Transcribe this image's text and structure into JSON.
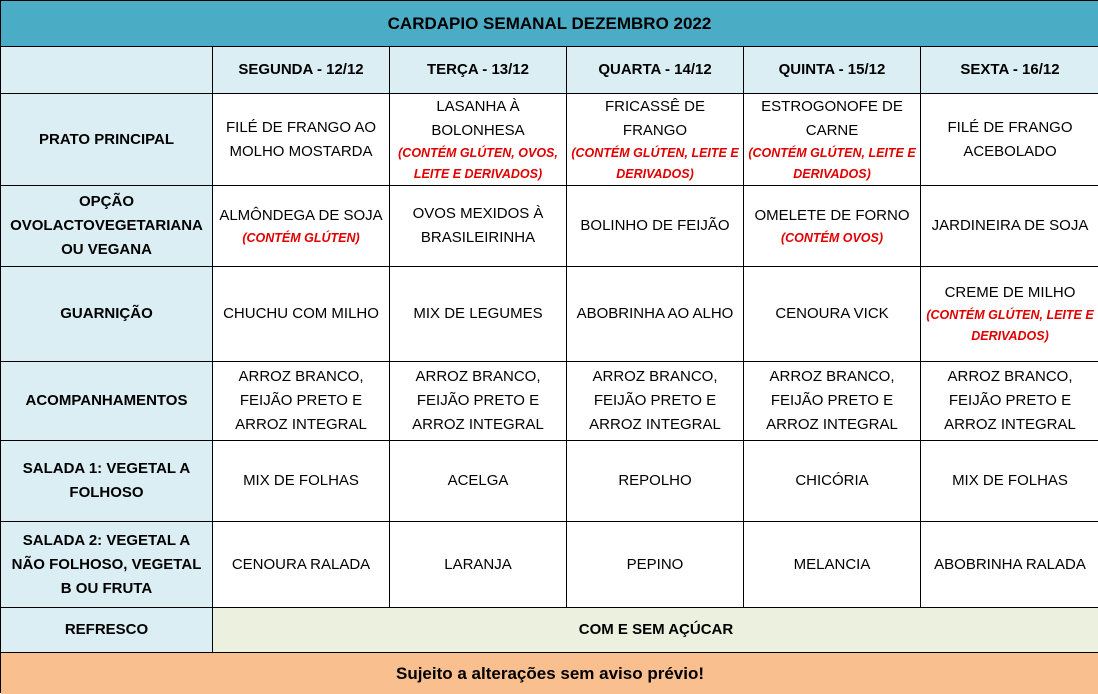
{
  "title": "CARDAPIO SEMANAL DEZEMBRO 2022",
  "days": [
    "SEGUNDA - 12/12",
    "TERÇA - 13/12",
    "QUARTA - 14/12",
    "QUINTA - 15/12",
    "SEXTA - 16/12"
  ],
  "rows": [
    {
      "label": "PRATO PRINCIPAL",
      "cells": [
        {
          "text": "FILÉ DE FRANGO AO MOLHO MOSTARDA"
        },
        {
          "text": "LASANHA À BOLONHESA",
          "note": "(CONTÉM GLÚTEN, OVOS, LEITE E DERIVADOS)"
        },
        {
          "text": "FRICASSÊ DE FRANGO",
          "note": "(CONTÉM GLÚTEN, LEITE E DERIVADOS)"
        },
        {
          "text": "ESTROGONOFE DE CARNE",
          "note": "(CONTÉM GLÚTEN, LEITE E DERIVADOS)"
        },
        {
          "text": "FILÉ DE FRANGO ACEBOLADO"
        }
      ]
    },
    {
      "label": "OPÇÃO OVOLACTOVEGETARIANA OU VEGANA",
      "cells": [
        {
          "text": "ALMÔNDEGA DE SOJA",
          "note": "(CONTÉM GLÚTEN)"
        },
        {
          "text": "OVOS MEXIDOS À BRASILEIRINHA"
        },
        {
          "text": "BOLINHO DE FEIJÃO"
        },
        {
          "text": "OMELETE DE FORNO",
          "note": "(CONTÉM OVOS)"
        },
        {
          "text": "JARDINEIRA DE SOJA"
        }
      ]
    },
    {
      "label": "GUARNIÇÃO",
      "cells": [
        {
          "text": "CHUCHU COM MILHO"
        },
        {
          "text": "MIX DE LEGUMES"
        },
        {
          "text": "ABOBRINHA AO ALHO"
        },
        {
          "text": "CENOURA VICK"
        },
        {
          "text": "CREME DE MILHO",
          "note": "(CONTÉM GLÚTEN, LEITE E DERIVADOS)"
        }
      ]
    },
    {
      "label": "ACOMPANHAMENTOS",
      "cells": [
        {
          "text": "ARROZ BRANCO, FEIJÃO PRETO E ARROZ INTEGRAL"
        },
        {
          "text": "ARROZ BRANCO, FEIJÃO PRETO E ARROZ INTEGRAL"
        },
        {
          "text": "ARROZ BRANCO, FEIJÃO PRETO E ARROZ INTEGRAL"
        },
        {
          "text": "ARROZ BRANCO, FEIJÃO PRETO E ARROZ INTEGRAL"
        },
        {
          "text": "ARROZ BRANCO, FEIJÃO PRETO E ARROZ INTEGRAL"
        }
      ]
    },
    {
      "label": "SALADA 1: VEGETAL A FOLHOSO",
      "cells": [
        {
          "text": "MIX DE FOLHAS"
        },
        {
          "text": "ACELGA"
        },
        {
          "text": "REPOLHO"
        },
        {
          "text": "CHICÓRIA"
        },
        {
          "text": "MIX DE FOLHAS"
        }
      ]
    },
    {
      "label": "SALADA 2: VEGETAL A NÃO FOLHOSO,   VEGETAL B OU FRUTA",
      "cells": [
        {
          "text": "CENOURA RALADA"
        },
        {
          "text": "LARANJA"
        },
        {
          "text": "PEPINO"
        },
        {
          "text": "MELANCIA"
        },
        {
          "text": "ABOBRINHA RALADA"
        }
      ]
    }
  ],
  "refresco": {
    "label": "REFRESCO",
    "value": "COM E SEM AÇÚCAR"
  },
  "footer": "Sujeito a alterações sem aviso prévio!",
  "colors": {
    "title_bg": "#4bacc6",
    "label_bg": "#daeef3",
    "refresco_bg": "#ebf1de",
    "footer_bg": "#fabf8f",
    "allergen_text": "#e00000"
  }
}
